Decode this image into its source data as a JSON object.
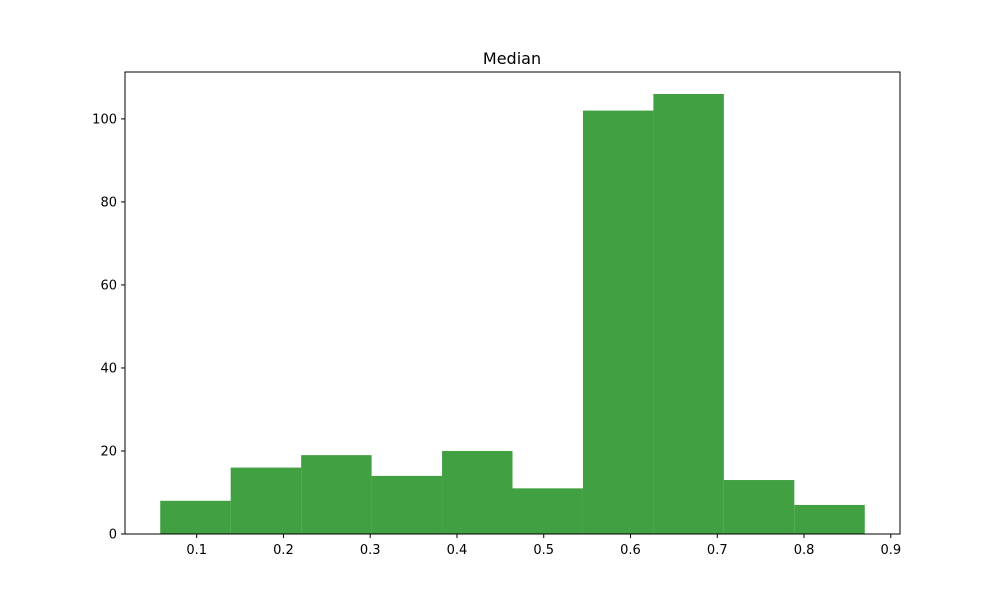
{
  "chart_data": {
    "type": "bar",
    "title": "Median",
    "xlabel": "",
    "ylabel": "",
    "bin_edges": [
      0.058,
      0.1392,
      0.2204,
      0.3016,
      0.3828,
      0.464,
      0.5452,
      0.6264,
      0.7076,
      0.7888,
      0.87
    ],
    "values": [
      8,
      16,
      19,
      14,
      20,
      11,
      102,
      106,
      13,
      7
    ],
    "xlim": [
      0.0174,
      0.9106
    ],
    "ylim": [
      0,
      111.3
    ],
    "xticks": [
      0.1,
      0.2,
      0.3,
      0.4,
      0.5,
      0.6,
      0.7,
      0.8,
      0.9
    ],
    "xtick_labels": [
      "0.1",
      "0.2",
      "0.3",
      "0.4",
      "0.5",
      "0.6",
      "0.7",
      "0.8",
      "0.9"
    ],
    "yticks": [
      0,
      20,
      40,
      60,
      80,
      100
    ],
    "ytick_labels": [
      "0",
      "20",
      "40",
      "60",
      "80",
      "100"
    ],
    "bar_color": "#41a041",
    "grid": false,
    "legend": "none"
  }
}
